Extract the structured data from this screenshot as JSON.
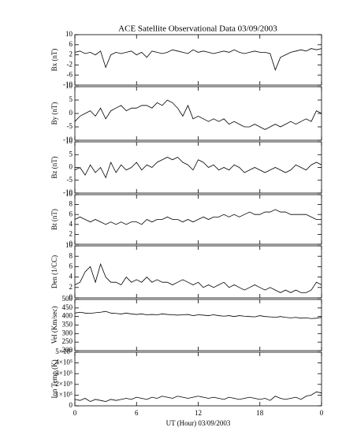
{
  "chart_data": [
    {
      "type": "line",
      "title": "ACE Satellite Observational Data  03/09/2003",
      "ylabel": "Bx (nT)",
      "color": "#000000",
      "x": [
        0,
        0.5,
        1,
        1.5,
        2,
        2.5,
        3,
        3.5,
        4,
        4.5,
        5,
        5.5,
        6,
        6.5,
        7,
        7.5,
        8,
        8.5,
        9,
        9.5,
        10,
        10.5,
        11,
        11.5,
        12,
        12.5,
        13,
        13.5,
        14,
        14.5,
        15,
        15.5,
        16,
        16.5,
        17,
        17.5,
        18,
        18.5,
        19,
        19.5,
        20,
        20.5,
        21,
        21.5,
        22,
        22.5,
        23,
        23.5,
        24
      ],
      "values": [
        3,
        3.5,
        2.5,
        3,
        2,
        3.5,
        -3,
        2,
        3,
        2.5,
        3,
        3.5,
        2,
        3,
        1,
        3.5,
        3,
        2.5,
        3,
        4,
        3.5,
        3,
        2.5,
        4,
        3,
        3.5,
        3,
        2.5,
        3,
        3.5,
        3,
        4,
        3,
        2.5,
        3,
        3.5,
        3,
        3,
        2.5,
        -4,
        1,
        2,
        3,
        3.5,
        4,
        3.5,
        4.5,
        4,
        4.5
      ],
      "xlim": [
        0,
        24
      ],
      "xticks": [
        0,
        6,
        12,
        18,
        {
          "value": 24,
          "label": "0"
        }
      ],
      "ylim": [
        -10,
        10
      ],
      "yticks": [
        -10,
        -6,
        -2,
        2,
        6,
        10
      ]
    },
    {
      "type": "line",
      "ylabel": "By (nT)",
      "color": "#000000",
      "x": [
        0,
        0.5,
        1,
        1.5,
        2,
        2.5,
        3,
        3.5,
        4,
        4.5,
        5,
        5.5,
        6,
        6.5,
        7,
        7.5,
        8,
        8.5,
        9,
        9.5,
        10,
        10.5,
        11,
        11.5,
        12,
        12.5,
        13,
        13.5,
        14,
        14.5,
        15,
        15.5,
        16,
        16.5,
        17,
        17.5,
        18,
        18.5,
        19,
        19.5,
        20,
        20.5,
        21,
        21.5,
        22,
        22.5,
        23,
        23.5,
        24
      ],
      "values": [
        -3,
        -1,
        0,
        1,
        -1,
        2,
        -2,
        1,
        2,
        3,
        1,
        2,
        2,
        3,
        3,
        2,
        4,
        3,
        5,
        4,
        2,
        -1,
        3,
        -2,
        -1,
        -2,
        -3,
        -2,
        -3,
        -2,
        -4,
        -3,
        -4,
        -5,
        -5,
        -4,
        -5,
        -6,
        -5,
        -4,
        -5,
        -4,
        -3,
        -4,
        -3,
        -2,
        -3,
        1,
        0
      ],
      "xlim": [
        0,
        24
      ],
      "xticks": [
        0,
        6,
        12,
        18,
        {
          "value": 24,
          "label": "0"
        }
      ],
      "ylim": [
        -10,
        10
      ],
      "yticks": [
        -10,
        -5,
        0,
        5,
        10
      ]
    },
    {
      "type": "line",
      "ylabel": "Bz (nT)",
      "color": "#000000",
      "x": [
        0,
        0.5,
        1,
        1.5,
        2,
        2.5,
        3,
        3.5,
        4,
        4.5,
        5,
        5.5,
        6,
        6.5,
        7,
        7.5,
        8,
        8.5,
        9,
        9.5,
        10,
        10.5,
        11,
        11.5,
        12,
        12.5,
        13,
        13.5,
        14,
        14.5,
        15,
        15.5,
        16,
        16.5,
        17,
        17.5,
        18,
        18.5,
        19,
        19.5,
        20,
        20.5,
        21,
        21.5,
        22,
        22.5,
        23,
        23.5,
        24
      ],
      "values": [
        -1,
        0,
        -3,
        1,
        -2,
        0,
        -4,
        2,
        -2,
        1,
        -1,
        0,
        2,
        -1,
        1,
        0,
        2,
        3,
        4,
        3,
        4,
        2,
        1,
        -1,
        3,
        2,
        0,
        1,
        -1,
        0,
        -1,
        1,
        0,
        -2,
        -1,
        0,
        -1,
        -2,
        -1,
        0,
        -1,
        -2,
        -1,
        1,
        0,
        -1,
        1,
        2,
        1
      ],
      "xlim": [
        0,
        24
      ],
      "xticks": [
        0,
        6,
        12,
        18,
        {
          "value": 24,
          "label": "0"
        }
      ],
      "ylim": [
        -10,
        10
      ],
      "yticks": [
        -10,
        -5,
        0,
        5,
        10
      ]
    },
    {
      "type": "line",
      "ylabel": "Bt (nT)",
      "color": "#000000",
      "x": [
        0,
        0.5,
        1,
        1.5,
        2,
        2.5,
        3,
        3.5,
        4,
        4.5,
        5,
        5.5,
        6,
        6.5,
        7,
        7.5,
        8,
        8.5,
        9,
        9.5,
        10,
        10.5,
        11,
        11.5,
        12,
        12.5,
        13,
        13.5,
        14,
        14.5,
        15,
        15.5,
        16,
        16.5,
        17,
        17.5,
        18,
        18.5,
        19,
        19.5,
        20,
        20.5,
        21,
        21.5,
        22,
        22.5,
        23,
        23.5,
        24
      ],
      "values": [
        5,
        5.5,
        5,
        4.5,
        5,
        4.5,
        4,
        4.5,
        4,
        4.5,
        4,
        4.5,
        4.5,
        4,
        5,
        4.5,
        5,
        5,
        5.5,
        5,
        5,
        4.5,
        5,
        4.5,
        5,
        5.5,
        5,
        5.5,
        5.5,
        6,
        5.5,
        6,
        5.5,
        6,
        6.5,
        6,
        6,
        6.5,
        6.5,
        7,
        6.5,
        6.5,
        6,
        6,
        6,
        6,
        5.5,
        5,
        5
      ],
      "xlim": [
        0,
        24
      ],
      "xticks": [
        0,
        6,
        12,
        18,
        {
          "value": 24,
          "label": "0"
        }
      ],
      "ylim": [
        0,
        10
      ],
      "yticks": [
        0,
        2,
        4,
        6,
        8,
        10
      ]
    },
    {
      "type": "line",
      "ylabel": "Den (1/CC)",
      "color": "#000000",
      "x": [
        0,
        0.5,
        1,
        1.5,
        2,
        2.5,
        3,
        3.5,
        4,
        4.5,
        5,
        5.5,
        6,
        6.5,
        7,
        7.5,
        8,
        8.5,
        9,
        9.5,
        10,
        10.5,
        11,
        11.5,
        12,
        12.5,
        13,
        13.5,
        14,
        14.5,
        15,
        15.5,
        16,
        16.5,
        17,
        17.5,
        18,
        18.5,
        19,
        19.5,
        20,
        20.5,
        21,
        21.5,
        22,
        22.5,
        23,
        23.5,
        24
      ],
      "values": [
        2.5,
        3,
        5,
        6,
        3,
        6.5,
        4,
        3,
        3,
        2.5,
        4,
        3,
        3.5,
        3,
        4,
        3,
        3.5,
        3,
        3,
        2.5,
        3,
        3.5,
        3,
        2.5,
        3,
        2,
        2.5,
        2,
        2.5,
        3,
        2,
        2.5,
        2,
        1.5,
        2,
        2.5,
        2,
        1.5,
        2,
        1.5,
        1,
        1.5,
        1,
        1.5,
        1,
        1,
        1.5,
        3,
        2.5
      ],
      "xlim": [
        0,
        24
      ],
      "xticks": [
        0,
        6,
        12,
        18,
        {
          "value": 24,
          "label": "0"
        }
      ],
      "ylim": [
        0,
        10
      ],
      "yticks": [
        0,
        2,
        4,
        6,
        8,
        10
      ]
    },
    {
      "type": "line",
      "ylabel": "Vel (Km/sec)",
      "color": "#000000",
      "x": [
        0,
        0.5,
        1,
        1.5,
        2,
        2.5,
        3,
        3.5,
        4,
        4.5,
        5,
        5.5,
        6,
        6.5,
        7,
        7.5,
        8,
        8.5,
        9,
        9.5,
        10,
        10.5,
        11,
        11.5,
        12,
        12.5,
        13,
        13.5,
        14,
        14.5,
        15,
        15.5,
        16,
        16.5,
        17,
        17.5,
        18,
        18.5,
        19,
        19.5,
        20,
        20.5,
        21,
        21.5,
        22,
        22.5,
        23,
        23.5,
        24
      ],
      "values": [
        420,
        425,
        420,
        418,
        422,
        425,
        430,
        420,
        418,
        415,
        420,
        415,
        412,
        415,
        410,
        412,
        410,
        415,
        412,
        410,
        408,
        410,
        412,
        405,
        410,
        408,
        405,
        410,
        405,
        402,
        405,
        400,
        405,
        402,
        400,
        398,
        405,
        400,
        398,
        395,
        400,
        395,
        392,
        395,
        390,
        392,
        388,
        390,
        395
      ],
      "xlim": [
        0,
        24
      ],
      "xticks": [
        0,
        6,
        12,
        18,
        {
          "value": 24,
          "label": "0"
        }
      ],
      "ylim": [
        200,
        500
      ],
      "yticks": [
        200,
        250,
        300,
        350,
        400,
        450,
        500
      ]
    },
    {
      "type": "line",
      "ylabel": "Ion Temp (K)",
      "xlabel": "UT (Hour)  03/09/2003",
      "color": "#000000",
      "x": [
        0,
        0.5,
        1,
        1.5,
        2,
        2.5,
        3,
        3.5,
        4,
        4.5,
        5,
        5.5,
        6,
        6.5,
        7,
        7.5,
        8,
        8.5,
        9,
        9.5,
        10,
        10.5,
        11,
        11.5,
        12,
        12.5,
        13,
        13.5,
        14,
        14.5,
        15,
        15.5,
        16,
        16.5,
        17,
        17.5,
        18,
        18.5,
        19,
        19.5,
        20,
        20.5,
        21,
        21.5,
        22,
        22.5,
        23,
        23.5,
        24
      ],
      "values": [
        60000,
        50000,
        70000,
        40000,
        60000,
        50000,
        40000,
        60000,
        50000,
        60000,
        70000,
        60000,
        80000,
        70000,
        60000,
        80000,
        70000,
        90000,
        80000,
        70000,
        90000,
        80000,
        70000,
        80000,
        90000,
        80000,
        70000,
        80000,
        70000,
        60000,
        80000,
        70000,
        60000,
        70000,
        80000,
        70000,
        60000,
        70000,
        50000,
        90000,
        70000,
        60000,
        70000,
        80000,
        60000,
        90000,
        100000,
        130000,
        120000
      ],
      "xlim": [
        0,
        24
      ],
      "xticks": [
        0,
        6,
        12,
        18,
        {
          "value": 24,
          "label": "0"
        }
      ],
      "ylim": [
        0,
        500000
      ],
      "yticks": [
        0,
        {
          "value": 100000,
          "label": "1×10⁵"
        },
        {
          "value": 200000,
          "label": "2×10⁵"
        },
        {
          "value": 300000,
          "label": "3×10⁵"
        },
        {
          "value": 400000,
          "label": "4×10⁵"
        },
        {
          "value": 500000,
          "label": "5×10⁵"
        }
      ]
    }
  ]
}
